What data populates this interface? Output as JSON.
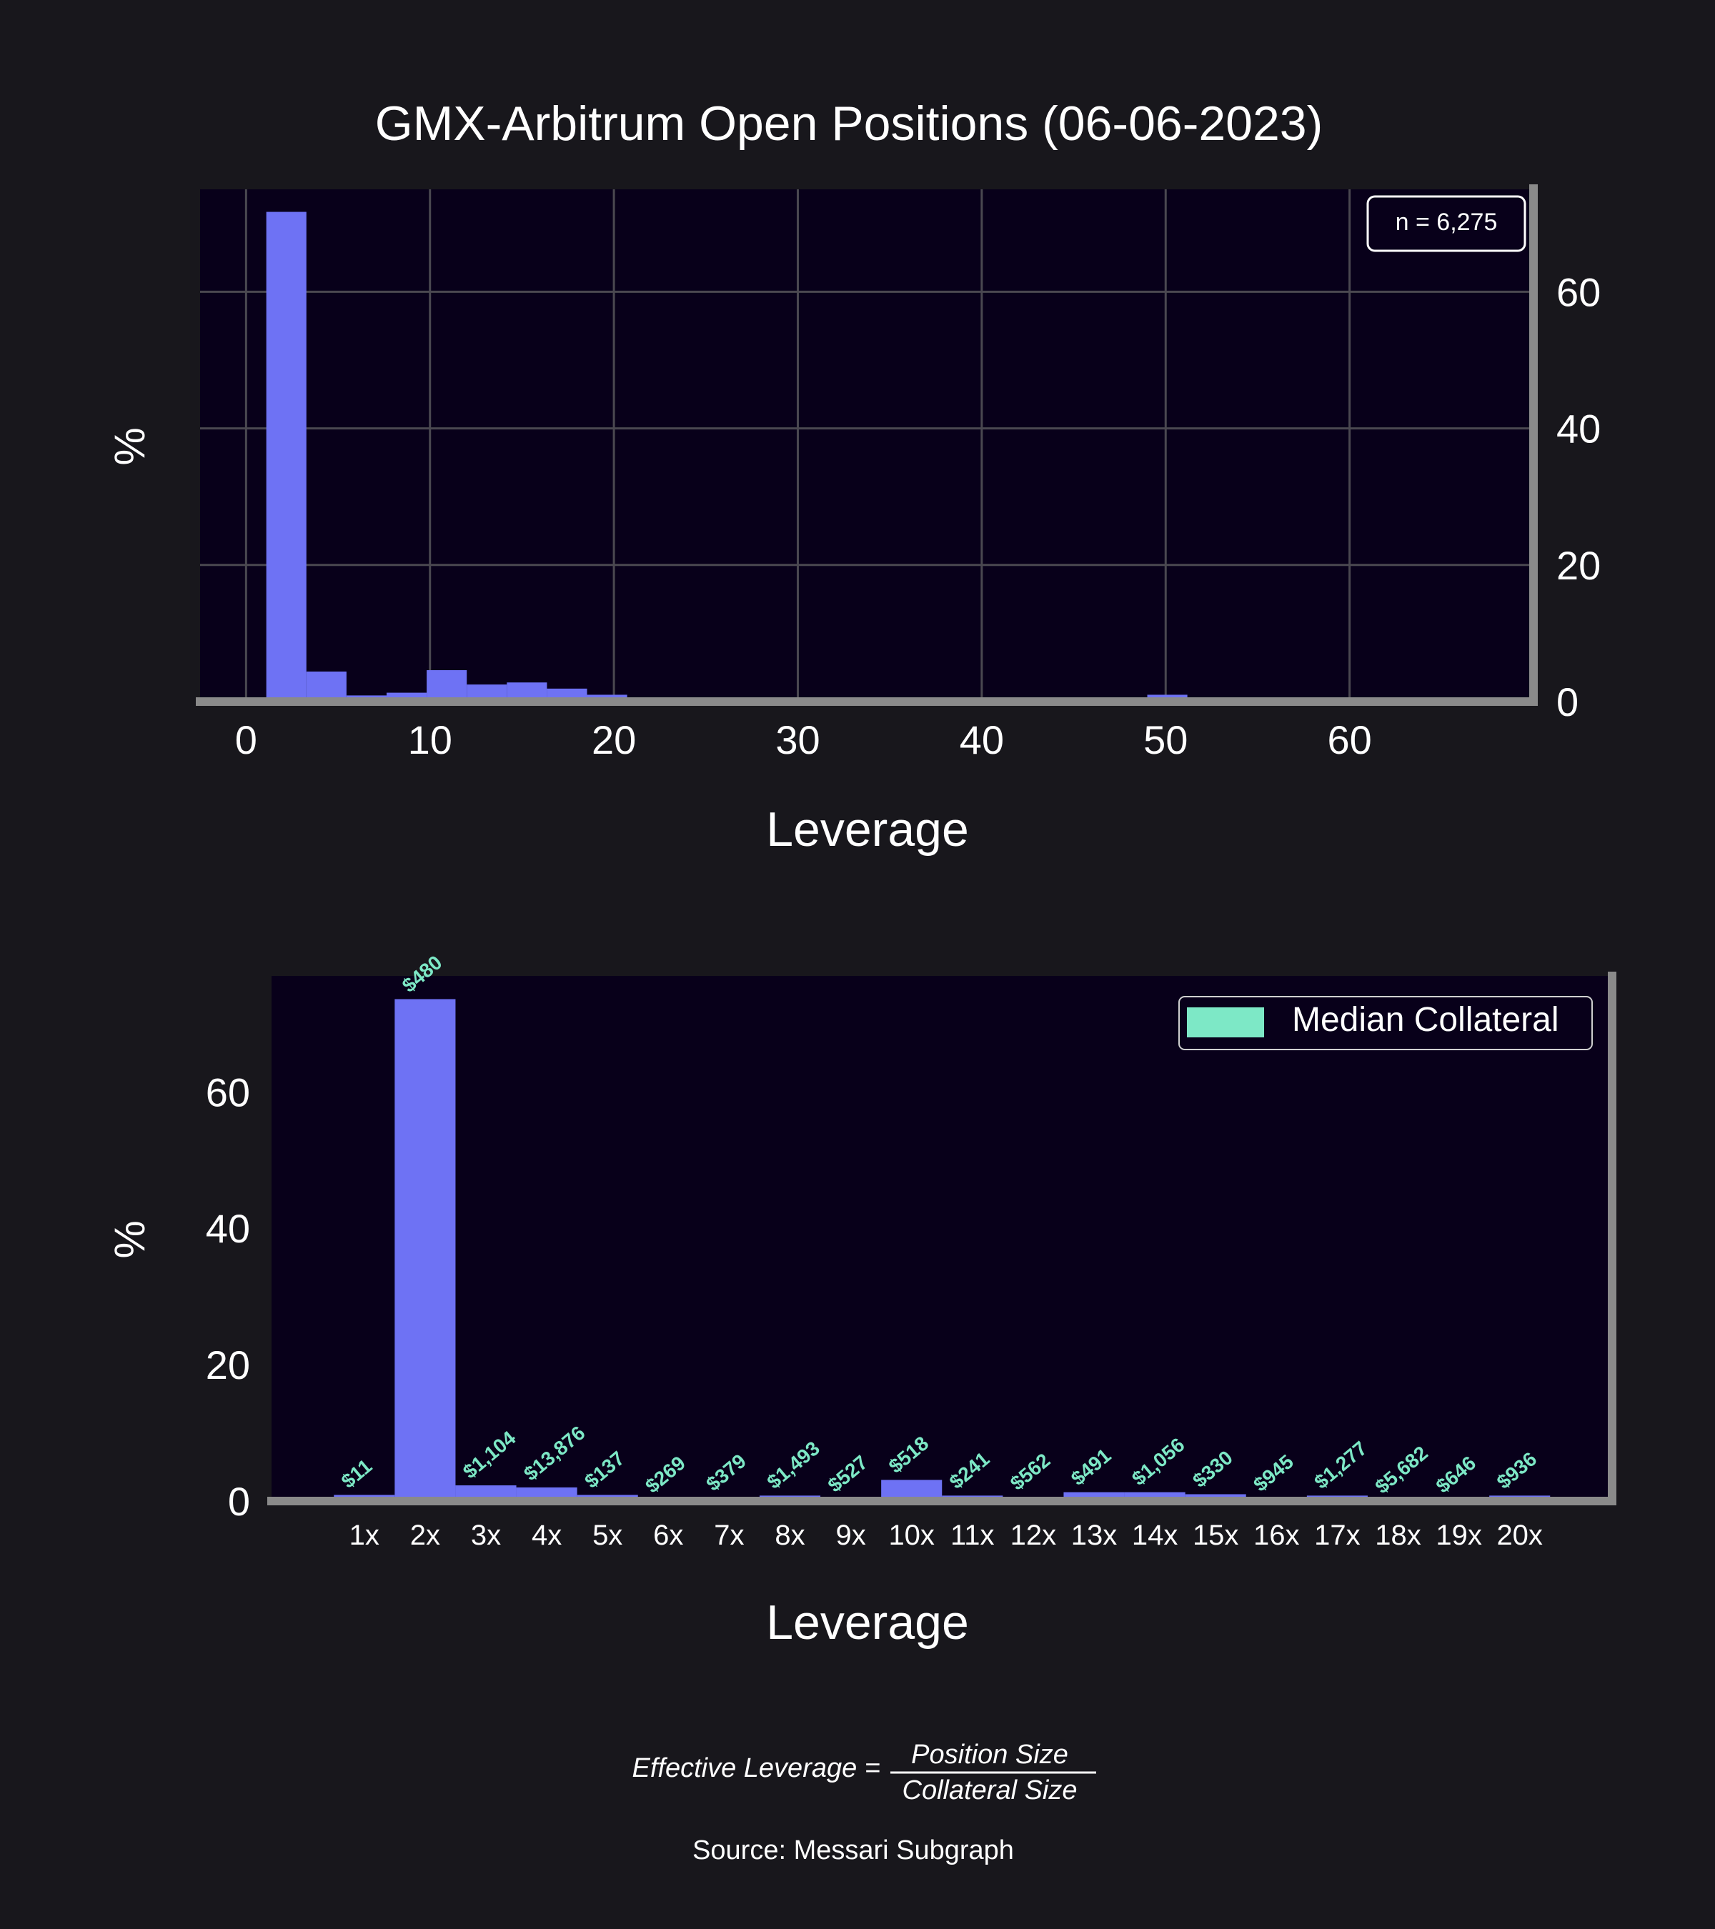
{
  "figure": {
    "title": "GMX-Arbitrum Open Positions (06-06-2023)",
    "formula_lhs": "Effective Leverage =",
    "formula_numerator": "Position Size",
    "formula_denominator": "Collateral Size",
    "source": "Source: Messari Subgraph"
  },
  "colors": {
    "background": "#18171c",
    "plot_background": "#08001a",
    "bar": "#6e72f4",
    "annotation": "#7de8c6",
    "grid": "#4a4850",
    "spine": "#8a8a8a"
  },
  "chart_data": [
    {
      "type": "bar",
      "subtype": "histogram",
      "xlabel": "Leverage",
      "ylabel": "%",
      "xlim": [
        -2.5,
        70
      ],
      "ylim": [
        0,
        75
      ],
      "xticks": [
        0,
        10,
        20,
        30,
        40,
        50,
        60
      ],
      "yticks": [
        0,
        20,
        40,
        60
      ],
      "y_axis_side": "right",
      "grid": true,
      "annotation_box": "n = 6,275",
      "annotation_position": "top-right",
      "bins": [
        {
          "x0": 1.1,
          "x1": 3.28,
          "value": 71.7
        },
        {
          "x0": 3.28,
          "x1": 5.46,
          "value": 4.4
        },
        {
          "x0": 5.46,
          "x1": 7.64,
          "value": 0.9
        },
        {
          "x0": 7.64,
          "x1": 9.82,
          "value": 1.3
        },
        {
          "x0": 9.82,
          "x1": 12.0,
          "value": 4.6
        },
        {
          "x0": 12.0,
          "x1": 14.18,
          "value": 2.5
        },
        {
          "x0": 14.18,
          "x1": 16.36,
          "value": 2.8
        },
        {
          "x0": 16.36,
          "x1": 18.54,
          "value": 1.9
        },
        {
          "x0": 18.54,
          "x1": 20.72,
          "value": 1.0
        },
        {
          "x0": 20.72,
          "x1": 22.9,
          "value": 0.4
        },
        {
          "x0": 22.9,
          "x1": 25.08,
          "value": 0.3
        },
        {
          "x0": 25.08,
          "x1": 27.26,
          "value": 0.1
        },
        {
          "x0": 49.0,
          "x1": 51.18,
          "value": 1.0
        }
      ]
    },
    {
      "type": "bar",
      "xlabel": "Leverage",
      "ylabel": "%",
      "ylim": [
        0,
        77
      ],
      "yticks": [
        0,
        20,
        40,
        60
      ],
      "legend": "Median Collateral",
      "legend_position": "top-right",
      "categories": [
        "1x",
        "2x",
        "3x",
        "4x",
        "5x",
        "6x",
        "7x",
        "8x",
        "9x",
        "10x",
        "11x",
        "12x",
        "13x",
        "14x",
        "15x",
        "16x",
        "17x",
        "18x",
        "19x",
        "20x"
      ],
      "values": [
        0.9,
        73.6,
        2.3,
        2.0,
        0.9,
        0.2,
        0.5,
        0.8,
        0.3,
        3.1,
        0.8,
        0.6,
        1.3,
        1.3,
        1.0,
        0.4,
        0.8,
        0.1,
        0.2,
        0.8
      ],
      "labels": [
        "$11",
        "$480",
        "$1,104",
        "$13,876",
        "$137",
        "$269",
        "$379",
        "$1,493",
        "$527",
        "$518",
        "$241",
        "$562",
        "$491",
        "$1,056",
        "$330",
        "$945",
        "$1,277",
        "$5,682",
        "$646",
        "$936"
      ]
    }
  ]
}
